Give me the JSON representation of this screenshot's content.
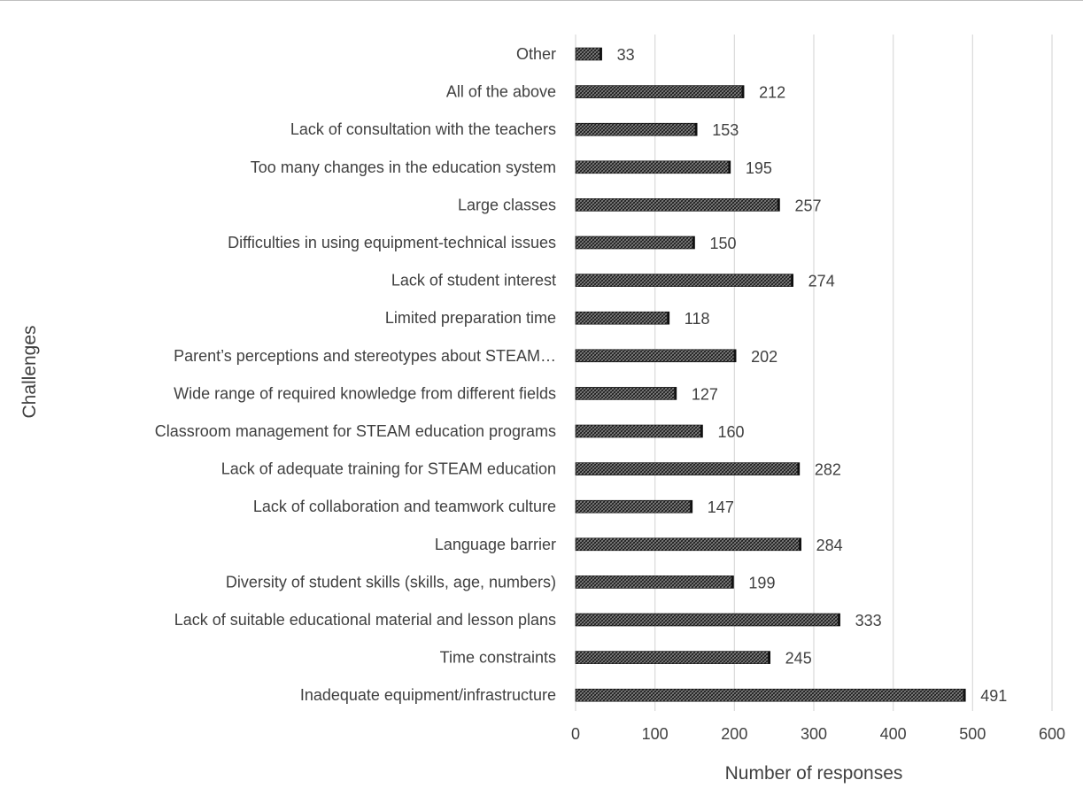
{
  "chart_data": {
    "type": "bar",
    "orientation": "horizontal",
    "xlabel": "Number of responses",
    "ylabel": "Challenges",
    "xlim": [
      0,
      600
    ],
    "x_ticks": [
      "0",
      "100",
      "200",
      "300",
      "400",
      "500",
      "600"
    ],
    "grid": "vertical",
    "legend": "none",
    "bar_pattern": "dark crosshatch",
    "categories": [
      "Other",
      "All of the above",
      "Lack of consultation with the teachers",
      "Too many changes in the education system",
      "Large classes",
      "Difficulties in using equipment-technical issues",
      "Lack of student interest",
      "Limited preparation time",
      "Parent’s perceptions and stereotypes about STEAM…",
      "Wide range of required knowledge from different fields",
      "Classroom management for STEAM education programs",
      "Lack of adequate training for STEAM education",
      "Lack of collaboration and teamwork culture",
      "Language barrier",
      "Diversity of student skills (skills, age, numbers)",
      "Lack of suitable educational material and lesson plans",
      "Time constraints",
      "Inadequate equipment/infrastructure"
    ],
    "values": [
      33,
      212,
      153,
      195,
      257,
      150,
      274,
      118,
      202,
      127,
      160,
      282,
      147,
      284,
      199,
      333,
      245,
      491
    ]
  },
  "colors": {
    "text": "#404040",
    "grid": "#d9d9d9",
    "bar_fill": "#7f7f7f",
    "bar_dark": "#1a1a1a"
  }
}
